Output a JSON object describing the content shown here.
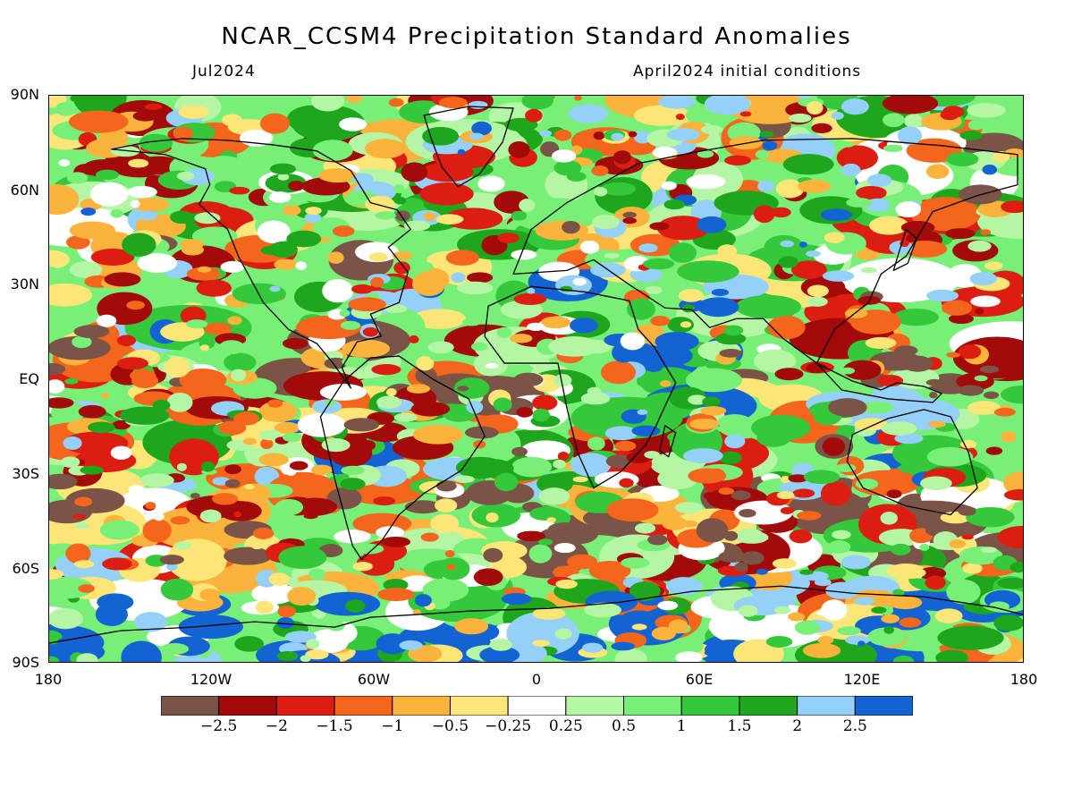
{
  "title": "NCAR_CCSM4 Precipitation Standard Anomalies",
  "subtitle_left": "Jul2024",
  "subtitle_right": "April2024 initial conditions",
  "lat_labels": [
    "90N",
    "60N",
    "30N",
    "EQ",
    "30S",
    "60S",
    "90S"
  ],
  "lon_labels": [
    "180",
    "120W",
    "60W",
    "0",
    "60E",
    "120E",
    "180"
  ],
  "colorbar": {
    "colors": [
      "#7a5447",
      "#a30a0a",
      "#dc1e12",
      "#f4661c",
      "#fbb33c",
      "#fde678",
      "#ffffff",
      "#b4f6a4",
      "#78f078",
      "#34c83a",
      "#1ea61c",
      "#94d0f8",
      "#1463d2"
    ],
    "labels": [
      "-2.5",
      "-2",
      "-1.5",
      "-1",
      "-0.5",
      "-0.25",
      "0.25",
      "0.5",
      "1",
      "1.5",
      "2",
      "2.5"
    ]
  }
}
